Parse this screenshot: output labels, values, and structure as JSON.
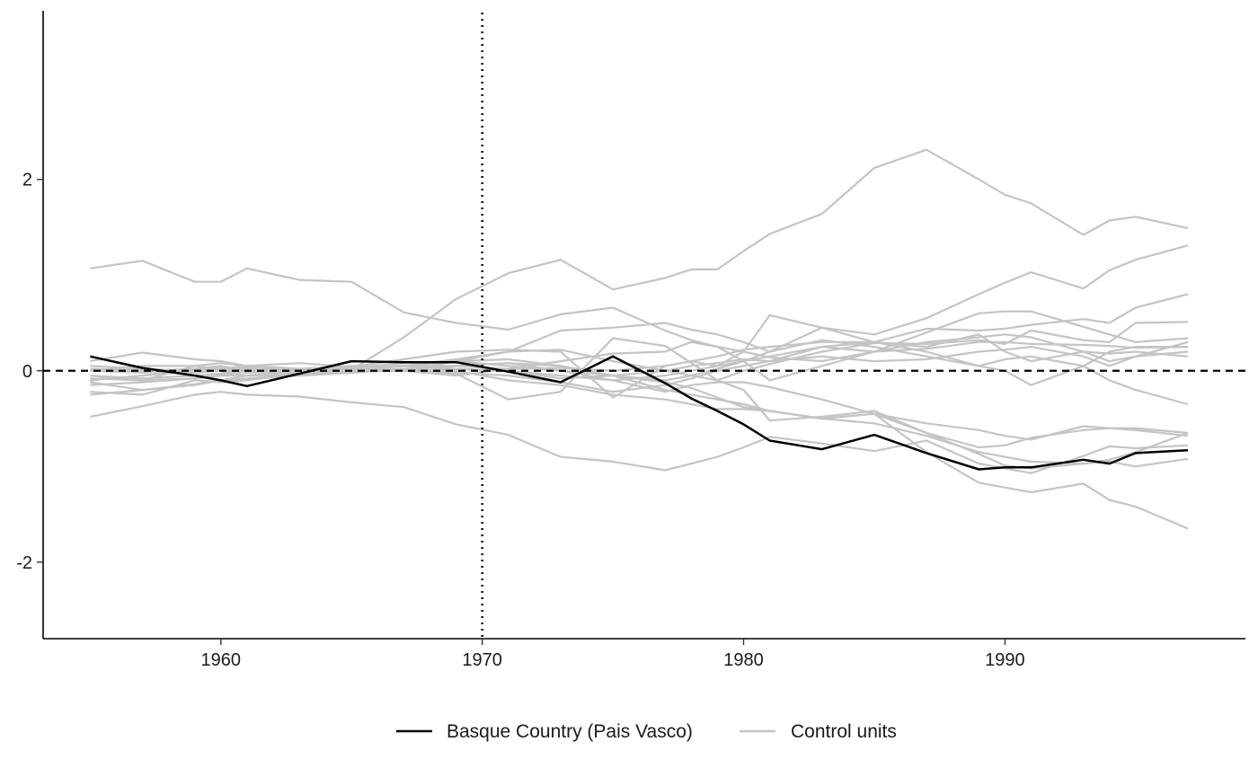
{
  "chart_data": {
    "type": "line",
    "title": "",
    "xlabel": "",
    "ylabel": "",
    "xlim": [
      1953.2,
      1999.2
    ],
    "ylim": [
      -2.8,
      3.8
    ],
    "x_ticks": [
      1960,
      1970,
      1980,
      1990
    ],
    "y_ticks": [
      -2,
      0,
      2
    ],
    "grid": false,
    "legend_position": "bottom",
    "reference_lines": [
      {
        "orientation": "horizontal",
        "value": 0,
        "style": "dashed"
      },
      {
        "orientation": "vertical",
        "value": 1970,
        "style": "dotted"
      }
    ],
    "colors": {
      "treated": "#000000",
      "control": "#c4c4c4"
    },
    "legend": [
      {
        "label": "Basque Country (Pais Vasco)",
        "color": "#000000"
      },
      {
        "label": "Control units",
        "color": "#c4c4c4"
      }
    ],
    "x": [
      1955,
      1957,
      1959,
      1960,
      1961,
      1963,
      1965,
      1967,
      1969,
      1971,
      1973,
      1975,
      1977,
      1978,
      1979,
      1980,
      1981,
      1983,
      1985,
      1987,
      1989,
      1990,
      1991,
      1993,
      1994,
      1995,
      1997
    ],
    "treated": {
      "name": "Basque Country (Pais Vasco)",
      "values": [
        0.15,
        0.03,
        -0.05,
        -0.1,
        -0.16,
        -0.03,
        0.1,
        0.09,
        0.09,
        -0.01,
        -0.12,
        0.15,
        -0.13,
        -0.29,
        -0.42,
        -0.56,
        -0.73,
        -0.82,
        -0.67,
        -0.86,
        -1.03,
        -1.01,
        -1.01,
        -0.93,
        -0.97,
        -0.86,
        -0.83
      ]
    },
    "controls": [
      {
        "values": [
          1.07,
          1.15,
          0.93,
          0.93,
          1.07,
          0.95,
          0.93,
          0.61,
          0.5,
          0.43,
          0.59,
          0.66,
          0.42,
          0.32,
          0.25,
          0.2,
          0.14,
          0.1,
          0.2,
          0.23,
          0.3,
          0.3,
          0.28,
          0.27,
          0.26,
          0.24,
          0.25
        ]
      },
      {
        "values": [
          -0.48,
          -0.37,
          -0.25,
          -0.22,
          -0.25,
          -0.27,
          -0.33,
          -0.38,
          -0.56,
          -0.67,
          -0.9,
          -0.95,
          -1.04,
          -0.97,
          -0.9,
          -0.8,
          -0.69,
          -0.76,
          -0.84,
          -0.73,
          -0.97,
          -1.02,
          -1.07,
          -0.89,
          -0.79,
          -0.81,
          -0.78
        ]
      },
      {
        "values": [
          -0.08,
          -0.1,
          0.05,
          0.08,
          0.05,
          0.02,
          0.01,
          0.35,
          0.75,
          1.02,
          1.16,
          0.85,
          0.97,
          1.06,
          1.06,
          1.25,
          1.43,
          1.64,
          2.12,
          2.31,
          2.0,
          1.84,
          1.75,
          1.42,
          1.57,
          1.61,
          1.49
        ]
      },
      {
        "values": [
          -0.1,
          -0.05,
          0.0,
          0.02,
          0.05,
          0.08,
          0.04,
          0.12,
          0.2,
          0.22,
          0.2,
          -0.28,
          0.05,
          0.1,
          0.05,
          0.2,
          0.58,
          0.45,
          0.38,
          0.55,
          0.8,
          0.92,
          1.03,
          0.86,
          1.05,
          1.16,
          1.31
        ]
      },
      {
        "values": [
          -0.22,
          -0.25,
          -0.1,
          -0.12,
          -0.1,
          -0.03,
          0.0,
          0.05,
          0.1,
          0.2,
          0.42,
          0.45,
          0.5,
          0.43,
          0.38,
          0.3,
          0.2,
          0.45,
          0.3,
          0.44,
          0.42,
          0.44,
          0.48,
          0.54,
          0.5,
          0.66,
          0.8
        ]
      },
      {
        "values": [
          0.1,
          0.19,
          0.12,
          0.1,
          0.05,
          0.02,
          -0.01,
          0.0,
          -0.03,
          -0.3,
          -0.22,
          0.34,
          0.26,
          0.08,
          -0.1,
          0.0,
          0.07,
          0.2,
          0.29,
          0.28,
          0.32,
          0.28,
          0.42,
          0.32,
          0.3,
          0.5,
          0.51
        ]
      },
      {
        "values": [
          -0.12,
          -0.2,
          -0.14,
          -0.1,
          -0.05,
          0.0,
          0.03,
          0.08,
          0.1,
          0.05,
          0.0,
          -0.1,
          -0.22,
          -0.15,
          -0.12,
          -0.12,
          -0.17,
          -0.3,
          -0.45,
          -0.65,
          -0.87,
          -0.99,
          -1.02,
          -0.97,
          -0.93,
          -0.85,
          -0.65
        ]
      },
      {
        "values": [
          -0.05,
          -0.08,
          -0.05,
          -0.03,
          0.02,
          0.02,
          0.0,
          0.0,
          -0.05,
          0.02,
          0.1,
          0.18,
          0.2,
          0.3,
          0.25,
          0.1,
          -0.1,
          0.05,
          0.2,
          0.4,
          0.6,
          0.62,
          0.62,
          0.46,
          0.38,
          0.3,
          0.34
        ]
      },
      {
        "values": [
          0.0,
          0.05,
          0.05,
          0.02,
          0.0,
          -0.02,
          0.0,
          0.0,
          0.1,
          0.12,
          0.05,
          -0.05,
          -0.1,
          -0.05,
          0.02,
          0.1,
          0.2,
          0.32,
          0.25,
          0.15,
          0.05,
          0.12,
          0.15,
          0.05,
          -0.1,
          -0.2,
          -0.35
        ]
      },
      {
        "values": [
          0.05,
          0.02,
          0.0,
          0.0,
          -0.05,
          -0.05,
          -0.02,
          0.02,
          0.0,
          -0.1,
          -0.15,
          -0.25,
          -0.3,
          -0.35,
          -0.4,
          -0.4,
          -0.42,
          -0.5,
          -0.45,
          -0.55,
          -0.62,
          -0.68,
          -0.72,
          -0.58,
          -0.6,
          -0.62,
          -0.68
        ]
      },
      {
        "values": [
          0.0,
          0.0,
          0.02,
          0.05,
          0.0,
          0.02,
          0.02,
          0.05,
          0.12,
          0.2,
          0.22,
          0.1,
          0.0,
          -0.05,
          -0.1,
          -0.2,
          -0.52,
          -0.48,
          -0.42,
          -0.65,
          -0.8,
          -0.78,
          -0.7,
          -0.62,
          -0.6,
          -0.6,
          -0.65
        ]
      },
      {
        "values": [
          -0.1,
          -0.05,
          0.0,
          0.02,
          -0.02,
          0.0,
          0.05,
          0.05,
          0.02,
          0.0,
          -0.05,
          -0.1,
          -0.05,
          0.0,
          0.05,
          0.1,
          0.15,
          0.25,
          0.3,
          0.25,
          0.38,
          0.2,
          0.1,
          0.2,
          0.18,
          0.2,
          0.15
        ]
      },
      {
        "values": [
          0.0,
          -0.02,
          0.0,
          0.03,
          0.03,
          0.0,
          0.0,
          0.02,
          0.05,
          0.08,
          0.0,
          -0.05,
          -0.12,
          -0.18,
          -0.28,
          -0.38,
          -0.42,
          -0.5,
          -0.45,
          -0.85,
          -1.17,
          -1.22,
          -1.27,
          -1.18,
          -1.35,
          -1.42,
          -1.65
        ]
      },
      {
        "values": [
          -0.05,
          -0.1,
          -0.08,
          -0.05,
          0.0,
          0.0,
          0.02,
          0.0,
          0.02,
          0.0,
          -0.08,
          -0.05,
          0.0,
          0.05,
          0.08,
          0.12,
          0.1,
          0.25,
          0.2,
          0.3,
          0.35,
          0.38,
          0.35,
          0.2,
          0.1,
          0.15,
          0.2
        ]
      },
      {
        "values": [
          0.02,
          0.0,
          -0.02,
          0.0,
          0.02,
          0.02,
          0.05,
          0.05,
          0.05,
          0.02,
          0.03,
          0.0,
          0.05,
          0.1,
          0.15,
          0.22,
          0.25,
          0.3,
          0.3,
          0.2,
          0.05,
          0.0,
          -0.15,
          0.05,
          0.2,
          0.25,
          0.25
        ]
      },
      {
        "values": [
          -0.15,
          -0.12,
          -0.08,
          -0.05,
          -0.05,
          -0.02,
          0.0,
          0.0,
          -0.02,
          -0.05,
          -0.12,
          -0.22,
          -0.15,
          -0.08,
          0.0,
          0.05,
          0.1,
          0.15,
          0.1,
          0.12,
          0.2,
          0.22,
          0.25,
          0.15,
          0.05,
          0.15,
          0.3
        ]
      },
      {
        "values": [
          -0.25,
          -0.2,
          -0.15,
          -0.1,
          -0.08,
          -0.05,
          -0.02,
          0.02,
          0.05,
          0.08,
          0.05,
          -0.05,
          -0.2,
          -0.25,
          -0.3,
          -0.35,
          -0.42,
          -0.5,
          -0.55,
          -0.68,
          -0.85,
          -0.9,
          -0.95,
          -0.97,
          -0.95,
          -1.0,
          -0.92
        ]
      }
    ]
  }
}
